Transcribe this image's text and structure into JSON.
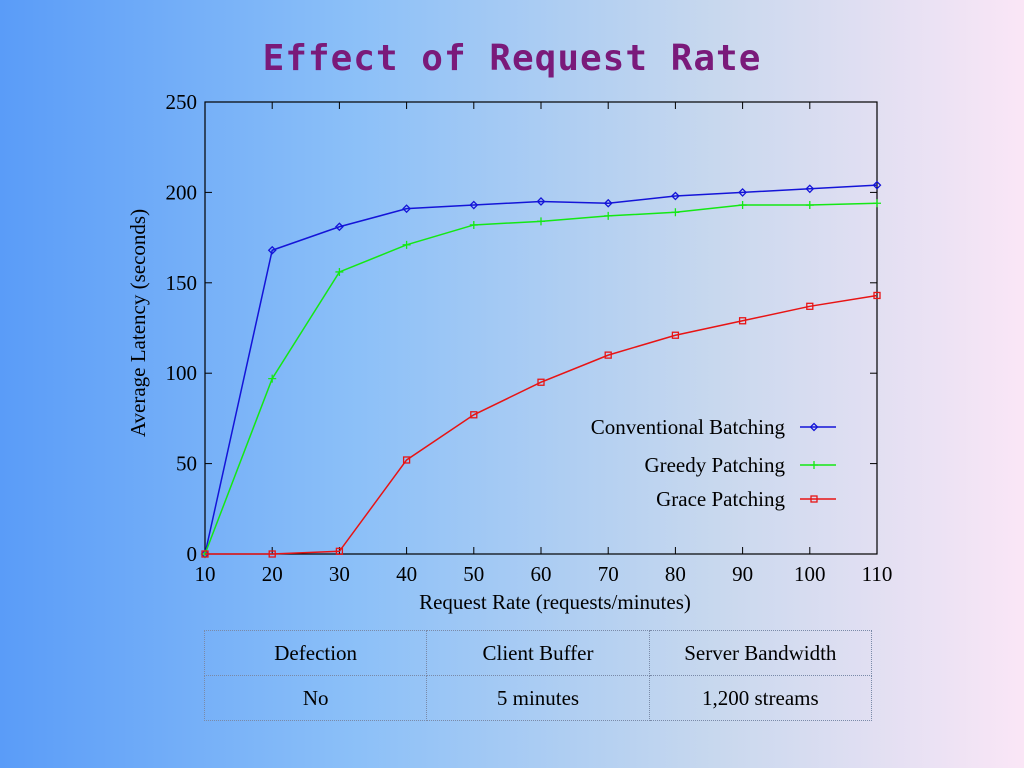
{
  "slide": {
    "title": "Effect of Request Rate"
  },
  "chart_data": {
    "type": "line",
    "title": "",
    "xlabel": "Request Rate (requests/minutes)",
    "ylabel": "Average Latency (seconds)",
    "x": [
      10,
      20,
      30,
      40,
      50,
      60,
      70,
      80,
      90,
      100,
      110
    ],
    "xlim": [
      10,
      110
    ],
    "ylim": [
      0,
      250
    ],
    "xticks": [
      10,
      20,
      30,
      40,
      50,
      60,
      70,
      80,
      90,
      100,
      110
    ],
    "yticks": [
      0,
      50,
      100,
      150,
      200,
      250
    ],
    "grid": false,
    "legend_position": "right",
    "series": [
      {
        "name": "Conventional Batching",
        "color": "#1414d8",
        "marker": "diamond",
        "values": [
          0,
          168,
          181,
          191,
          193,
          195,
          194,
          198,
          200,
          202,
          204
        ]
      },
      {
        "name": "Greedy Patching",
        "color": "#14e814",
        "marker": "plus",
        "values": [
          0,
          97,
          156,
          171,
          182,
          184,
          187,
          189,
          193,
          193,
          194
        ]
      },
      {
        "name": "Grace Patching",
        "color": "#e81414",
        "marker": "square",
        "values": [
          0,
          0,
          1.5,
          52,
          77,
          95,
          110,
          121,
          129,
          137,
          143
        ]
      }
    ]
  },
  "table": {
    "headers": [
      "Defection",
      "Client Buffer",
      "Server Bandwidth"
    ],
    "row": [
      "No",
      "5 minutes",
      "1,200 streams"
    ]
  }
}
